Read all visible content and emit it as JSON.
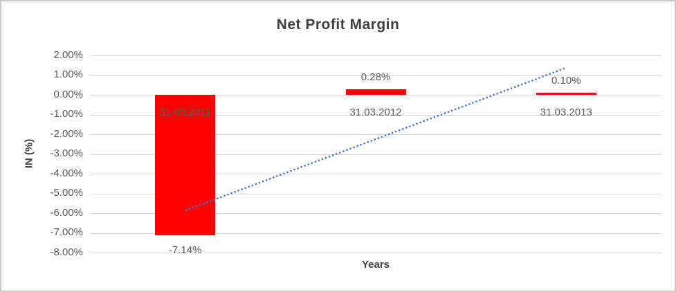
{
  "window": {
    "background_color": "#ffffff",
    "border_color": "#c9c9c9"
  },
  "chart_data": {
    "type": "bar",
    "title": "Net Profit Margin",
    "xlabel": "Years",
    "ylabel": "IN (%)",
    "categories": [
      "31.03.2011",
      "31.03.2012",
      "31.03.2013"
    ],
    "values": [
      -7.14,
      0.28,
      0.1
    ],
    "data_labels": [
      "-7.14%",
      "0.28%",
      "0.10%"
    ],
    "y_ticks": [
      {
        "label": "2.00%",
        "value": 2
      },
      {
        "label": "1.00%",
        "value": 1
      },
      {
        "label": "0.00%",
        "value": 0
      },
      {
        "label": "-1.00%",
        "value": -1
      },
      {
        "label": "-2.00%",
        "value": -2
      },
      {
        "label": "-3.00%",
        "value": -3
      },
      {
        "label": "-4.00%",
        "value": -4
      },
      {
        "label": "-5.00%",
        "value": -5
      },
      {
        "label": "-6.00%",
        "value": -6
      },
      {
        "label": "-7.00%",
        "value": -7
      },
      {
        "label": "-8.00%",
        "value": -8
      }
    ],
    "ylim": [
      -8,
      2
    ],
    "grid": true,
    "legend": "none",
    "bar_color": "#ff0000",
    "gridline_color": "#d9d9d9",
    "label_color": "#595959",
    "title_color": "#404040",
    "trendline": {
      "type": "linear",
      "style": "dotted",
      "color": "#4472c4",
      "start_value": -5.87,
      "end_value": 1.37
    }
  }
}
